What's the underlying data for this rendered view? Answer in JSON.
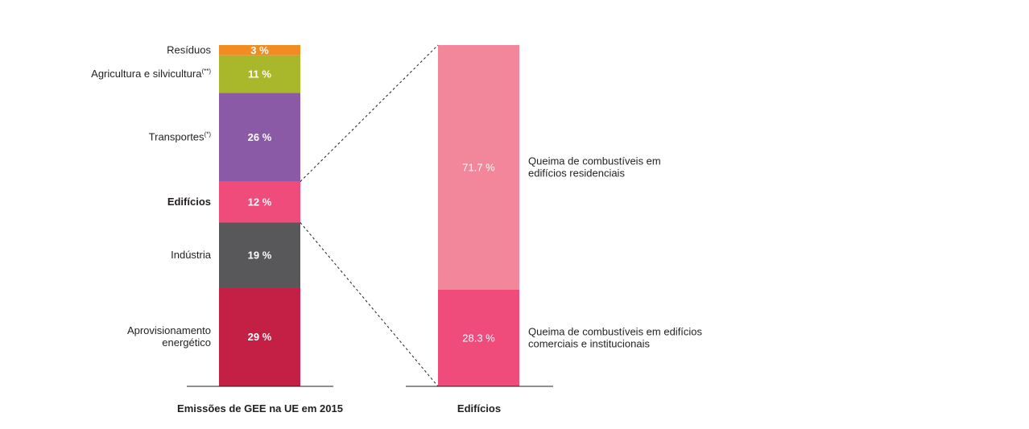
{
  "chart_data": [
    {
      "type": "bar",
      "stacked": true,
      "xlabel": "Emissões de GEE na UE em 2015",
      "unit": "%",
      "segments": [
        {
          "label": "Aprovisionamento energético",
          "value": 29,
          "display": "29 %",
          "color": "#c41f44"
        },
        {
          "label": "Indústria",
          "value": 19,
          "display": "19 %",
          "color": "#58585a"
        },
        {
          "label": "Edifícios",
          "value": 12,
          "display": "12 %",
          "color": "#ef4b7b",
          "highlight": true
        },
        {
          "label": "Transportes",
          "sup": "(*)",
          "value": 26,
          "display": "26 %",
          "color": "#8b5aa6"
        },
        {
          "label": "Agricultura e silvicultura",
          "sup": "(**)",
          "value": 11,
          "display": "11 %",
          "color": "#a8b82a"
        },
        {
          "label": "Resíduos",
          "value": 3,
          "display": "3 %",
          "color": "#f08c22"
        }
      ]
    },
    {
      "type": "bar",
      "stacked": true,
      "xlabel": "Edifícios",
      "unit": "%",
      "segments": [
        {
          "label": "Queima de combustíveis em edifícios comerciais e institucionais",
          "value": 28.3,
          "display": "28.3 %",
          "color": "#ef4b7b"
        },
        {
          "label": "Queima de combustíveis em edifícios residenciais",
          "value": 71.7,
          "display": "71.7 %",
          "color": "#f2879c"
        }
      ]
    }
  ]
}
